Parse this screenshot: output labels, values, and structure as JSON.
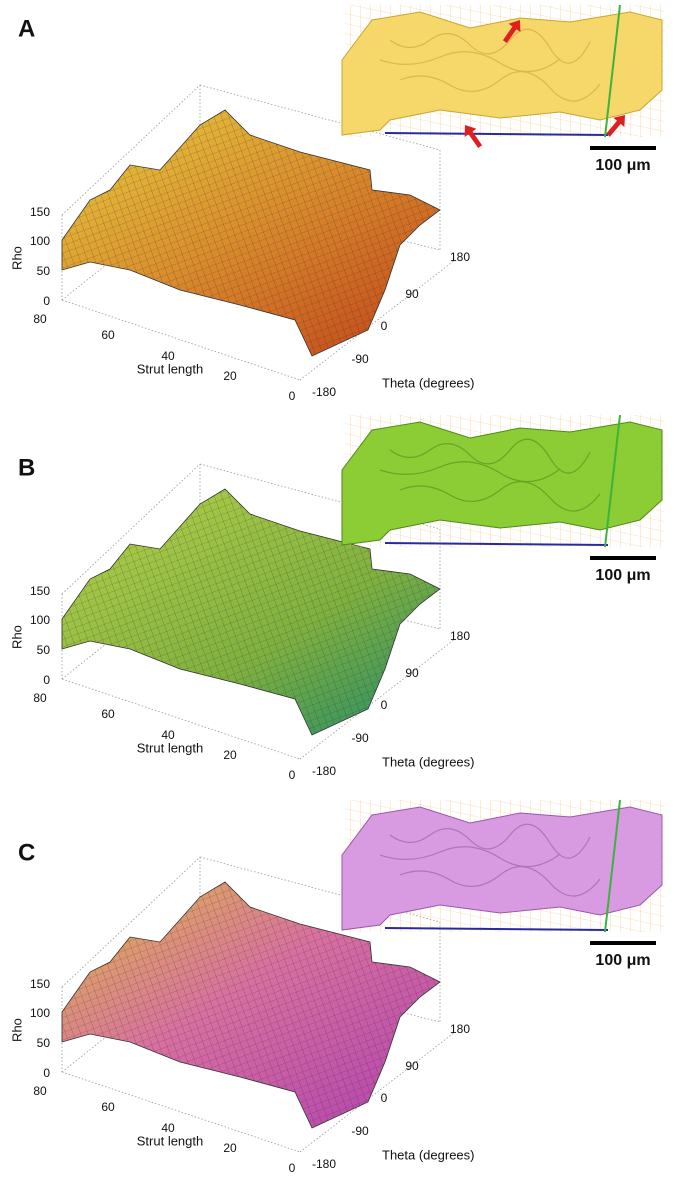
{
  "panels": [
    {
      "label": "A",
      "y_axis_label": "Rho",
      "y_ticks": [
        "150",
        "100",
        "50",
        "0"
      ],
      "x_axis_label": "Strut length",
      "x_ticks": [
        "80",
        "60",
        "40",
        "20",
        "0"
      ],
      "z_axis_label": "Theta (degrees)",
      "z_ticks": [
        "180",
        "90",
        "0",
        "-90",
        "-180"
      ],
      "scale_bar": "100 μm"
    },
    {
      "label": "B",
      "y_axis_label": "Rho",
      "y_ticks": [
        "150",
        "100",
        "50",
        "0"
      ],
      "x_axis_label": "Strut length",
      "x_ticks": [
        "80",
        "60",
        "40",
        "20",
        "0"
      ],
      "z_axis_label": "Theta (degrees)",
      "z_ticks": [
        "180",
        "90",
        "0",
        "-90",
        "-180"
      ],
      "scale_bar": "100 μm"
    },
    {
      "label": "C",
      "y_axis_label": "Rho",
      "y_ticks": [
        "150",
        "100",
        "50",
        "0"
      ],
      "x_axis_label": "Strut length",
      "x_ticks": [
        "80",
        "60",
        "40",
        "20",
        "0"
      ],
      "z_axis_label": "Theta (degrees)",
      "z_ticks": [
        "180",
        "90",
        "0",
        "-90",
        "-180"
      ],
      "scale_bar": "100 μm"
    }
  ]
}
